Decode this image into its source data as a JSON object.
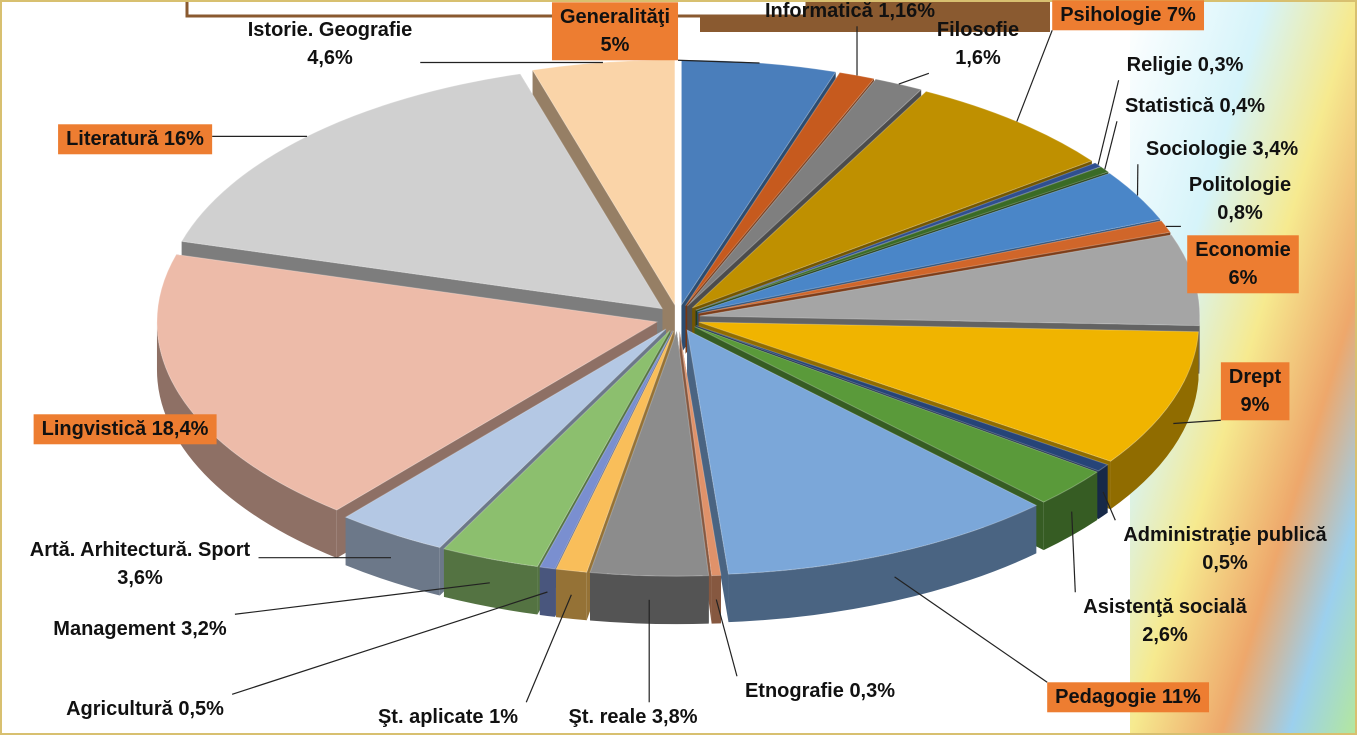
{
  "chart_data": {
    "type": "pie",
    "categories": [
      "Generalităţi",
      "Informatică",
      "Filosofie",
      "Psihologie",
      "Religie",
      "Statistică",
      "Sociologie",
      "Politologie",
      "Economie",
      "Drept",
      "Administraţie publică",
      "Asistenţă socială",
      "Pedagogie",
      "Etnografie",
      "Şt. reale",
      "Şt. aplicate",
      "Agricultură",
      "Management",
      "Artă. Arhitectură. Sport",
      "Lingvistică",
      "Literatură",
      "Istorie. Geografie"
    ],
    "values": [
      5,
      1.16,
      1.6,
      7,
      0.3,
      0.4,
      3.4,
      0.8,
      6,
      9,
      0.5,
      2.6,
      11,
      0.3,
      3.8,
      1,
      0.5,
      3.2,
      3.6,
      18.4,
      16,
      4.6
    ],
    "value_labels": [
      "5%",
      "1,16%",
      "1,6%",
      "7%",
      "0,3%",
      "0,4%",
      "3,4%",
      "0,8%",
      "6%",
      "9%",
      "0,5%",
      "2,6%",
      "11%",
      "0,3%",
      "3,8%",
      "1%",
      "0,5%",
      "3,2%",
      "3,6%",
      "18,4%",
      "16%",
      "4,6%"
    ],
    "colors": [
      "#4A7EBB",
      "#C65A1E",
      "#7F7F7F",
      "#BF9000",
      "#2F4F8F",
      "#3A6B26",
      "#4A86C8",
      "#D0662A",
      "#A5A5A5",
      "#F0B400",
      "#264478",
      "#5A9A3A",
      "#7BA7D9",
      "#E0926A",
      "#8C8C8C",
      "#F9BE5A",
      "#7A8FD0",
      "#8CBF6E",
      "#B4C8E4",
      "#EDBBA9",
      "#D0D0D0",
      "#FAD4A8"
    ],
    "label_highlight": [
      true,
      false,
      false,
      true,
      false,
      false,
      false,
      false,
      true,
      true,
      false,
      false,
      true,
      false,
      false,
      false,
      false,
      false,
      false,
      true,
      true,
      false
    ],
    "highlight_color": "#ED7D31"
  }
}
